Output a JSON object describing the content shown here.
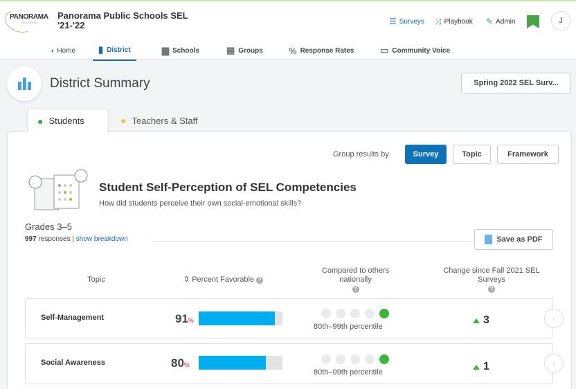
{
  "header": {
    "logo": "PANORAMA",
    "logo_sub": "EDUCATION",
    "title": "Panorama Public Schools SEL '21-'22",
    "links": [
      {
        "label": "Surveys",
        "color": "#1a6bb0"
      },
      {
        "label": "Playbook",
        "color": "#333333"
      },
      {
        "label": "Admin",
        "color": "#333333"
      }
    ],
    "avatar": "J"
  },
  "nav": {
    "home": "Home",
    "district": "District",
    "schools": "Schools",
    "groups": "Groups",
    "response_rates": "Response Rates",
    "community_voice": "Community Voice"
  },
  "summary": {
    "title": "District Summary",
    "survey_select": "Spring 2022 SEL Surv..."
  },
  "tabs": {
    "students": "Students",
    "teachers": "Teachers & Staff"
  },
  "group_by": {
    "label": "Group results by",
    "options": [
      "Survey",
      "Topic",
      "Framework"
    ],
    "selected": "Survey"
  },
  "section": {
    "title": "Student Self-Perception of SEL Competencies",
    "subtitle": "How did students perceive their own social-emotional skills?",
    "grades": "Grades 3–5",
    "responses_count": "997",
    "responses_word": "responses",
    "separator": "|",
    "breakdown_link": "show breakdown",
    "pdf_button": "Save as PDF"
  },
  "table": {
    "headers": {
      "topic": "Topic",
      "favorable": "Percent Favorable",
      "compared": "Compared to others nationally",
      "change": "Change since Fall 2021 SEL Surveys"
    },
    "rows": [
      {
        "topic": "Self-Management",
        "percent": "91",
        "percent_unit": "%",
        "favorable": 0.91,
        "national_level": 5,
        "percentile": "80th–99th percentile",
        "change": "3"
      },
      {
        "topic": "Social Awareness",
        "percent": "80",
        "percent_unit": "%",
        "favorable": 0.8,
        "national_level": 5,
        "percentile": "80th–99th percentile",
        "change": "1"
      }
    ]
  },
  "colors": {
    "accent": "#0e72b8",
    "bar": "#00aeef",
    "positive": "#3cb53c",
    "bookmark": "#47a447"
  }
}
